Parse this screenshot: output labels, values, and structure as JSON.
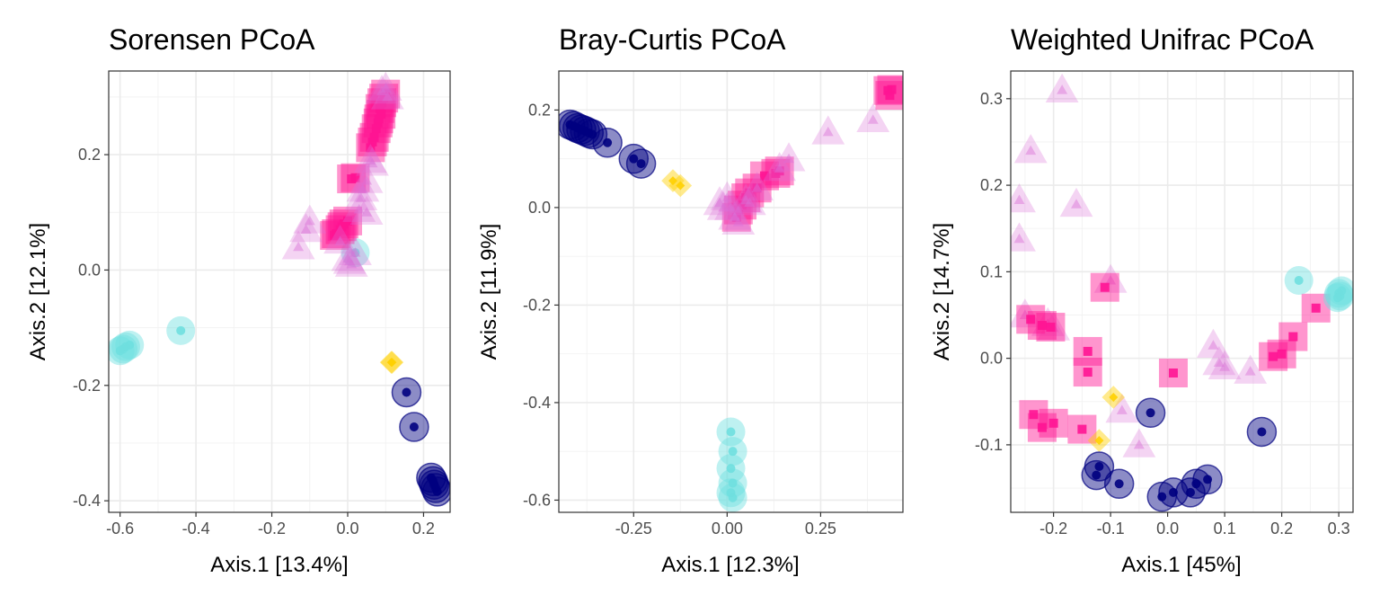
{
  "figure": {
    "groups": [
      {
        "name": "navy",
        "shape": "circle",
        "color": "#000080"
      },
      {
        "name": "cyan",
        "shape": "circle",
        "color": "#6fdfdf"
      },
      {
        "name": "gold",
        "shape": "diamond",
        "color": "#ffd000"
      },
      {
        "name": "pink",
        "shape": "square",
        "color": "#ff1493"
      },
      {
        "name": "lavender",
        "shape": "triangle",
        "color": "#da70d6"
      }
    ]
  },
  "chart_data": [
    {
      "type": "scatter",
      "title": "Sorensen PCoA",
      "xlabel": "Axis.1   [13.4%]",
      "ylabel": "Axis.2   [12.1%]",
      "xlim": [
        -0.63,
        0.27
      ],
      "ylim": [
        -0.42,
        0.345
      ],
      "xticks": [
        -0.6,
        -0.4,
        -0.2,
        0.0,
        0.2
      ],
      "xtick_labels": [
        "-0.6",
        "-0.4",
        "-0.2",
        "0.0",
        "0.2"
      ],
      "yticks": [
        -0.4,
        -0.2,
        0.0,
        0.2
      ],
      "ytick_labels": [
        "-0.4",
        "-0.2",
        "0.0",
        "0.2"
      ],
      "series": [
        {
          "group": "cyan",
          "points": [
            [
              -0.44,
              -0.105
            ],
            [
              -0.575,
              -0.13
            ],
            [
              -0.585,
              -0.133
            ],
            [
              -0.592,
              -0.137
            ],
            [
              -0.6,
              -0.14
            ],
            [
              0.02,
              0.03
            ]
          ]
        },
        {
          "group": "navy",
          "points": [
            [
              0.155,
              -0.212
            ],
            [
              0.175,
              -0.272
            ],
            [
              0.22,
              -0.36
            ],
            [
              0.225,
              -0.366
            ],
            [
              0.228,
              -0.372
            ],
            [
              0.232,
              -0.378
            ],
            [
              0.236,
              -0.384
            ]
          ]
        },
        {
          "group": "gold",
          "points": [
            [
              0.115,
              -0.16
            ],
            [
              0.117,
              -0.16
            ]
          ]
        },
        {
          "group": "pink",
          "points": [
            [
              0.1,
              0.305
            ],
            [
              0.095,
              0.298
            ],
            [
              0.09,
              0.29
            ],
            [
              0.085,
              0.28
            ],
            [
              0.088,
              0.27
            ],
            [
              0.082,
              0.262
            ],
            [
              0.08,
              0.255
            ],
            [
              0.075,
              0.245
            ],
            [
              0.07,
              0.23
            ],
            [
              0.065,
              0.222
            ],
            [
              0.06,
              0.212
            ],
            [
              0.02,
              0.16
            ],
            [
              0.01,
              0.158
            ],
            [
              0.0,
              0.085
            ],
            [
              -0.01,
              0.08
            ],
            [
              -0.015,
              0.075
            ],
            [
              -0.02,
              0.07
            ],
            [
              -0.03,
              0.063
            ],
            [
              -0.035,
              0.06
            ]
          ]
        },
        {
          "group": "lavender",
          "points": [
            [
              0.09,
              0.31
            ],
            [
              0.1,
              0.315
            ],
            [
              0.105,
              0.3
            ],
            [
              0.06,
              0.19
            ],
            [
              0.065,
              0.185
            ],
            [
              0.05,
              0.155
            ],
            [
              0.04,
              0.14
            ],
            [
              0.035,
              0.125
            ],
            [
              0.03,
              0.105
            ],
            [
              0.05,
              0.1
            ],
            [
              -0.1,
              0.085
            ],
            [
              -0.11,
              0.07
            ],
            [
              -0.13,
              0.04
            ],
            [
              0.0,
              0.02
            ],
            [
              0.005,
              0.015
            ],
            [
              0.01,
              0.01
            ],
            [
              0.02,
              0.03
            ],
            [
              -0.02,
              0.05
            ]
          ]
        }
      ]
    },
    {
      "type": "scatter",
      "title": "Bray-Curtis PCoA",
      "xlabel": "Axis.1   [12.3%]",
      "ylabel": "Axis.2   [11.9%]",
      "xlim": [
        -0.45,
        0.47
      ],
      "ylim": [
        -0.625,
        0.28
      ],
      "xticks": [
        -0.25,
        0.0,
        0.25
      ],
      "xtick_labels": [
        "-0.25",
        "0.00",
        "0.25"
      ],
      "yticks": [
        -0.6,
        -0.4,
        -0.2,
        0.0,
        0.2
      ],
      "ytick_labels": [
        "-0.6",
        "-0.4",
        "-0.2",
        "0.0",
        "0.2"
      ],
      "series": [
        {
          "group": "navy",
          "points": [
            [
              -0.42,
              0.17
            ],
            [
              -0.41,
              0.167
            ],
            [
              -0.4,
              0.163
            ],
            [
              -0.39,
              0.16
            ],
            [
              -0.38,
              0.157
            ],
            [
              -0.37,
              0.153
            ],
            [
              -0.36,
              0.15
            ],
            [
              -0.32,
              0.133
            ],
            [
              -0.25,
              0.1
            ],
            [
              -0.23,
              0.09
            ]
          ]
        },
        {
          "group": "gold",
          "points": [
            [
              -0.145,
              0.055
            ],
            [
              -0.125,
              0.045
            ]
          ]
        },
        {
          "group": "cyan",
          "points": [
            [
              0.01,
              -0.46
            ],
            [
              0.015,
              -0.5
            ],
            [
              0.01,
              -0.535
            ],
            [
              0.015,
              -0.565
            ],
            [
              0.01,
              -0.585
            ],
            [
              0.015,
              -0.595
            ]
          ]
        },
        {
          "group": "pink",
          "points": [
            [
              0.43,
              0.24
            ],
            [
              0.44,
              0.242
            ],
            [
              0.435,
              0.23
            ],
            [
              0.13,
              0.07
            ],
            [
              0.14,
              0.075
            ],
            [
              0.1,
              0.065
            ],
            [
              0.08,
              0.04
            ],
            [
              0.06,
              0.03
            ],
            [
              0.05,
              0.02
            ],
            [
              0.04,
              0.005
            ],
            [
              0.03,
              -0.005
            ],
            [
              0.025,
              -0.02
            ]
          ]
        },
        {
          "group": "lavender",
          "points": [
            [
              0.39,
              0.18
            ],
            [
              0.27,
              0.155
            ],
            [
              0.165,
              0.1
            ],
            [
              0.14,
              0.08
            ],
            [
              0.08,
              0.04
            ],
            [
              0.06,
              0.01
            ],
            [
              0.05,
              0.015
            ],
            [
              -0.01,
              0.0
            ],
            [
              -0.02,
              0.01
            ],
            [
              0.0,
              0.02
            ],
            [
              0.01,
              0.0
            ],
            [
              0.03,
              -0.03
            ],
            [
              0.02,
              -0.02
            ]
          ]
        }
      ]
    },
    {
      "type": "scatter",
      "title": "Weighted Unifrac PCoA",
      "xlabel": "Axis.1   [45%]",
      "ylabel": "Axis.2   [14.7%]",
      "xlim": [
        -0.275,
        0.325
      ],
      "ylim": [
        -0.178,
        0.332
      ],
      "xticks": [
        -0.2,
        -0.1,
        0.0,
        0.1,
        0.2,
        0.3
      ],
      "xtick_labels": [
        "-0.2",
        "-0.1",
        "0.0",
        "0.1",
        "0.2",
        "0.3"
      ],
      "yticks": [
        -0.1,
        0.0,
        0.1,
        0.2,
        0.3
      ],
      "ytick_labels": [
        "-0.1",
        "0.0",
        "0.1",
        "0.2",
        "0.3"
      ],
      "series": [
        {
          "group": "lavender",
          "points": [
            [
              -0.185,
              0.31
            ],
            [
              -0.24,
              0.24
            ],
            [
              -0.26,
              0.183
            ],
            [
              -0.16,
              0.178
            ],
            [
              -0.26,
              0.138
            ],
            [
              -0.1,
              0.09
            ],
            [
              -0.25,
              0.05
            ],
            [
              0.08,
              0.015
            ],
            [
              0.09,
              -0.005
            ],
            [
              0.1,
              -0.01
            ],
            [
              0.145,
              -0.015
            ],
            [
              -0.08,
              -0.06
            ],
            [
              -0.05,
              -0.1
            ],
            [
              -0.2,
              0.035
            ],
            [
              -0.21,
              0.04
            ]
          ]
        },
        {
          "group": "pink",
          "points": [
            [
              -0.11,
              0.082
            ],
            [
              -0.24,
              0.045
            ],
            [
              -0.22,
              0.038
            ],
            [
              -0.205,
              0.036
            ],
            [
              -0.14,
              0.008
            ],
            [
              -0.14,
              -0.016
            ],
            [
              0.01,
              -0.017
            ],
            [
              0.26,
              0.058
            ],
            [
              0.22,
              0.025
            ],
            [
              0.2,
              0.005
            ],
            [
              0.185,
              0.002
            ],
            [
              -0.235,
              -0.065
            ],
            [
              -0.22,
              -0.08
            ],
            [
              -0.2,
              -0.075
            ],
            [
              -0.15,
              -0.082
            ]
          ]
        },
        {
          "group": "cyan",
          "points": [
            [
              0.23,
              0.09
            ],
            [
              0.3,
              0.075
            ],
            [
              0.302,
              0.072
            ],
            [
              0.305,
              0.078
            ],
            [
              0.298,
              0.07
            ]
          ]
        },
        {
          "group": "gold",
          "points": [
            [
              -0.095,
              -0.045
            ],
            [
              -0.12,
              -0.095
            ]
          ]
        },
        {
          "group": "navy",
          "points": [
            [
              -0.03,
              -0.063
            ],
            [
              0.165,
              -0.085
            ],
            [
              -0.12,
              -0.125
            ],
            [
              -0.125,
              -0.135
            ],
            [
              -0.085,
              -0.145
            ],
            [
              -0.01,
              -0.16
            ],
            [
              0.01,
              -0.155
            ],
            [
              0.04,
              -0.155
            ],
            [
              0.05,
              -0.145
            ],
            [
              0.07,
              -0.14
            ]
          ]
        }
      ]
    }
  ]
}
